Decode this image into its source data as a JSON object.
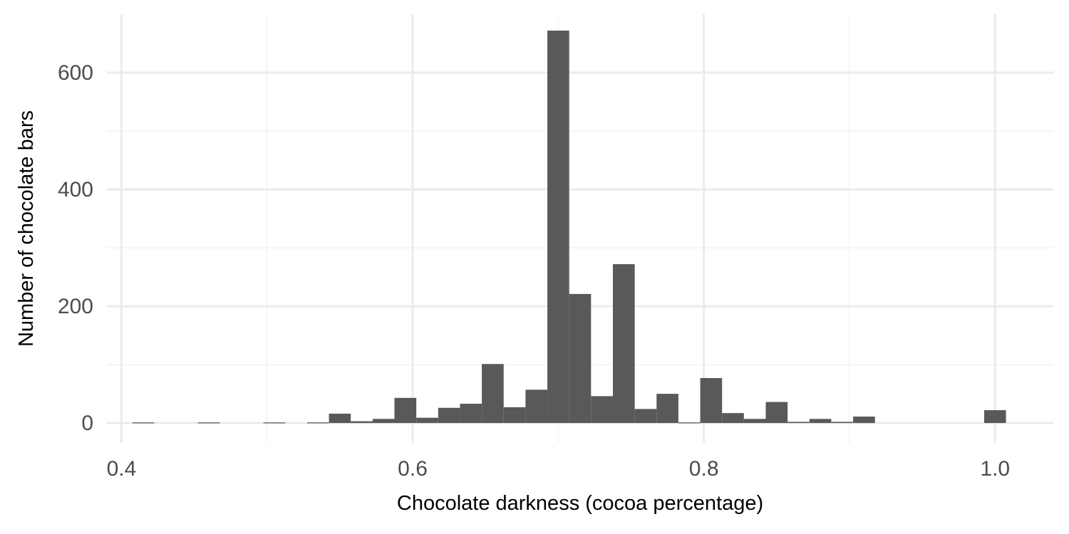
{
  "chart_data": {
    "type": "bar",
    "subtype": "histogram",
    "title": "",
    "xlabel": "Chocolate darkness (cocoa percentage)",
    "ylabel": "Number of chocolate bars",
    "xlim": [
      0.39,
      1.04
    ],
    "ylim": [
      -34,
      700
    ],
    "x_ticks": [
      0.4,
      0.6,
      0.8,
      1.0
    ],
    "x_tick_labels": [
      "0.4",
      "0.6",
      "0.8",
      "1.0"
    ],
    "y_ticks": [
      0,
      200,
      400,
      600
    ],
    "y_tick_labels": [
      "0",
      "200",
      "400",
      "600"
    ],
    "bin_width": 0.015,
    "grid": true,
    "bar_color": "#595959",
    "bins": [
      {
        "x": 0.415,
        "count": 1
      },
      {
        "x": 0.43,
        "count": 0
      },
      {
        "x": 0.445,
        "count": 0
      },
      {
        "x": 0.46,
        "count": 1
      },
      {
        "x": 0.475,
        "count": 0
      },
      {
        "x": 0.49,
        "count": 0
      },
      {
        "x": 0.505,
        "count": 1
      },
      {
        "x": 0.52,
        "count": 0
      },
      {
        "x": 0.535,
        "count": 1
      },
      {
        "x": 0.55,
        "count": 16
      },
      {
        "x": 0.565,
        "count": 3
      },
      {
        "x": 0.58,
        "count": 7
      },
      {
        "x": 0.595,
        "count": 43
      },
      {
        "x": 0.61,
        "count": 9
      },
      {
        "x": 0.625,
        "count": 26
      },
      {
        "x": 0.64,
        "count": 33
      },
      {
        "x": 0.655,
        "count": 101
      },
      {
        "x": 0.67,
        "count": 27
      },
      {
        "x": 0.685,
        "count": 57
      },
      {
        "x": 0.7,
        "count": 672
      },
      {
        "x": 0.715,
        "count": 221
      },
      {
        "x": 0.73,
        "count": 46
      },
      {
        "x": 0.745,
        "count": 272
      },
      {
        "x": 0.76,
        "count": 24
      },
      {
        "x": 0.775,
        "count": 50
      },
      {
        "x": 0.79,
        "count": 1
      },
      {
        "x": 0.805,
        "count": 77
      },
      {
        "x": 0.82,
        "count": 17
      },
      {
        "x": 0.835,
        "count": 7
      },
      {
        "x": 0.85,
        "count": 36
      },
      {
        "x": 0.865,
        "count": 2
      },
      {
        "x": 0.88,
        "count": 7
      },
      {
        "x": 0.895,
        "count": 2
      },
      {
        "x": 0.91,
        "count": 11
      },
      {
        "x": 0.925,
        "count": 0
      },
      {
        "x": 0.94,
        "count": 0
      },
      {
        "x": 0.955,
        "count": 0
      },
      {
        "x": 0.97,
        "count": 0
      },
      {
        "x": 0.985,
        "count": 0
      },
      {
        "x": 1.0,
        "count": 22
      }
    ]
  }
}
